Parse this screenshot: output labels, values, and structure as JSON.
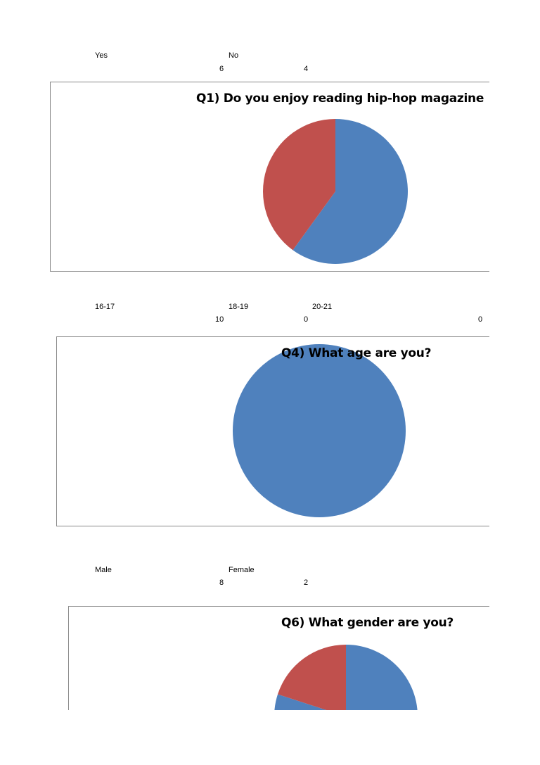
{
  "colors": {
    "blue": "#4f81bd",
    "red": "#c0504d"
  },
  "chart_data": [
    {
      "type": "pie",
      "title": "Q1) Do you enjoy reading hip-hop magazine",
      "categories": [
        "Yes",
        "No"
      ],
      "values": [
        6,
        4
      ],
      "table": {
        "headers": [
          "Yes",
          "No"
        ],
        "values": [
          "6",
          "4"
        ]
      }
    },
    {
      "type": "pie",
      "title": "Q4) What age are you?",
      "categories": [
        "16-17",
        "18-19",
        "20-21"
      ],
      "values": [
        10,
        0,
        0
      ],
      "table": {
        "headers": [
          "16-17",
          "18-19",
          "20-21"
        ],
        "values": [
          "10",
          "0",
          "0"
        ]
      }
    },
    {
      "type": "pie",
      "title": "Q6) What gender are you?",
      "categories": [
        "Male",
        "Female"
      ],
      "values": [
        8,
        2
      ],
      "table": {
        "headers": [
          "Male",
          "Female"
        ],
        "values": [
          "8",
          "2"
        ]
      }
    }
  ]
}
